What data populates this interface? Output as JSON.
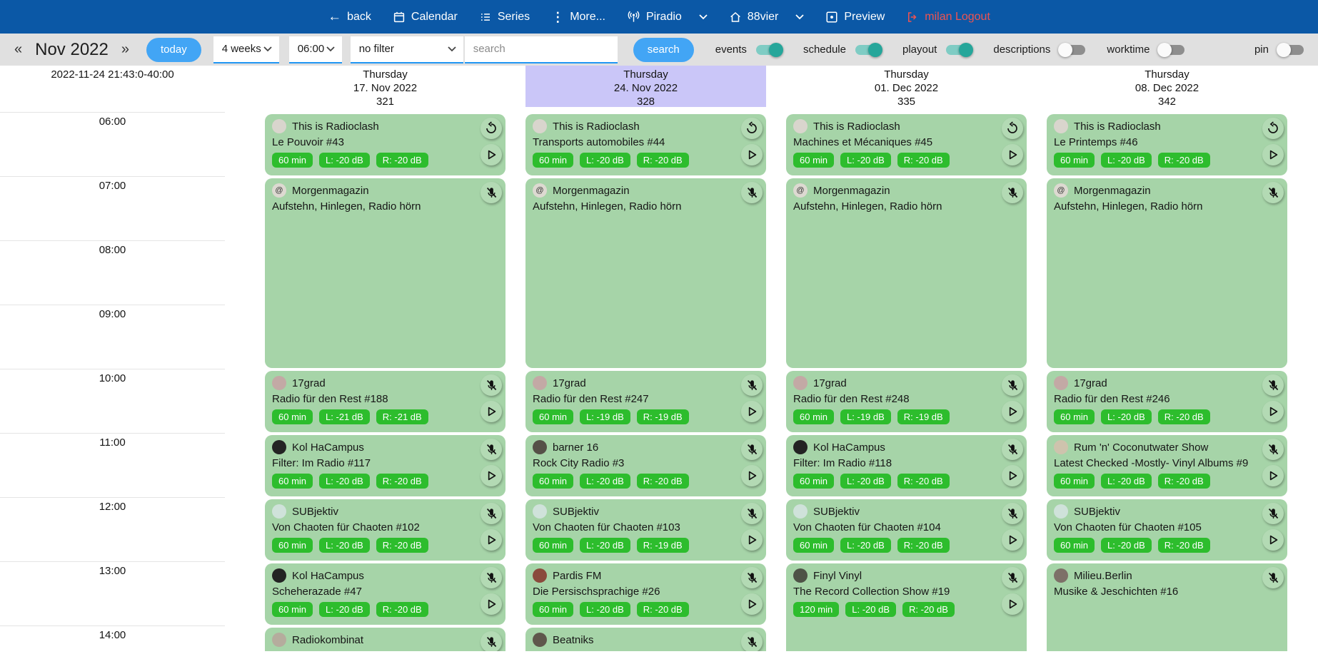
{
  "topbar": {
    "items": [
      {
        "icon": "arrow-left",
        "label": "back"
      },
      {
        "icon": "calendar",
        "label": "Calendar"
      },
      {
        "icon": "list",
        "label": "Series"
      },
      {
        "icon": "kebab",
        "label": "More..."
      },
      {
        "icon": "broadcast",
        "label": "Piradio",
        "chevron": true
      },
      {
        "icon": "home",
        "label": "88vier",
        "chevron": true
      },
      {
        "icon": "preview-eye",
        "label": "Preview"
      },
      {
        "icon": "logout",
        "label": "milan Logout",
        "danger": true
      }
    ]
  },
  "toolbar": {
    "prev": "«",
    "month": "Nov 2022",
    "next": "»",
    "today": "today",
    "range_select": "4 weeks",
    "time_select": "06:00",
    "filter_select": "no filter",
    "search_placeholder": "search",
    "search_button": "search",
    "toggles": [
      {
        "label": "events",
        "on": true
      },
      {
        "label": "schedule",
        "on": true
      },
      {
        "label": "playout",
        "on": true
      },
      {
        "label": "descriptions",
        "on": false
      },
      {
        "label": "worktime",
        "on": false
      }
    ],
    "pin": {
      "label": "pin",
      "on": false
    }
  },
  "calendar": {
    "timestamp": "2022-11-24 21:43:0-40:00",
    "hours": [
      "06:00",
      "07:00",
      "08:00",
      "09:00",
      "10:00",
      "11:00",
      "12:00",
      "13:00",
      "14:00"
    ],
    "days": [
      {
        "weekday": "Thursday",
        "date": "17. Nov 2022",
        "day_number": "321",
        "highlighted": false,
        "events": [
          {
            "show": "This is Radioclash",
            "episode": "Le Pouvoir #43",
            "start": "06:00",
            "span": 1,
            "badges": [
              "60 min",
              "L: -20 dB",
              "R: -20 dB"
            ],
            "icons": [
              "replay",
              "play"
            ],
            "avatar": "#d9d5cd"
          },
          {
            "show": "Morgenmagazin",
            "episode": "Aufstehn, Hinlegen, Radio hörn",
            "start": "07:00",
            "span": 3,
            "badges": [],
            "icons": [
              "mic-off"
            ],
            "avatar": "#ddd9d1",
            "glyph": "@"
          },
          {
            "show": "17grad",
            "episode": "Radio für den Rest #188",
            "start": "10:00",
            "span": 1,
            "badges": [
              "60 min",
              "L: -21 dB",
              "R: -21 dB"
            ],
            "icons": [
              "mic-off",
              "play"
            ],
            "avatar": "#c3a9a5"
          },
          {
            "show": "Kol HaCampus",
            "episode": "Filter: Im Radio #117",
            "start": "11:00",
            "span": 1,
            "badges": [
              "60 min",
              "L: -20 dB",
              "R: -20 dB"
            ],
            "icons": [
              "mic-off",
              "play"
            ],
            "avatar": "#232323"
          },
          {
            "show": "SUBjektiv",
            "episode": "Von Chaoten für Chaoten #102",
            "start": "12:00",
            "span": 1,
            "badges": [
              "60 min",
              "L: -20 dB",
              "R: -20 dB"
            ],
            "icons": [
              "mic-off",
              "play"
            ],
            "avatar": "#cfe2da"
          },
          {
            "show": "Kol HaCampus",
            "episode": "Scheherazade #47",
            "start": "13:00",
            "span": 1,
            "badges": [
              "60 min",
              "L: -20 dB",
              "R: -20 dB"
            ],
            "icons": [
              "mic-off",
              "play"
            ],
            "avatar": "#232323"
          },
          {
            "show": "Radiokombinat",
            "episode": "",
            "start": "14:00",
            "span": 1,
            "badges": [],
            "icons": [
              "mic-off"
            ],
            "avatar": "#b5ac9d"
          }
        ]
      },
      {
        "weekday": "Thursday",
        "date": "24. Nov 2022",
        "day_number": "328",
        "highlighted": true,
        "events": [
          {
            "show": "This is Radioclash",
            "episode": "Transports automobiles #44",
            "start": "06:00",
            "span": 1,
            "badges": [
              "60 min",
              "L: -20 dB",
              "R: -20 dB"
            ],
            "icons": [
              "replay",
              "play"
            ],
            "avatar": "#d9d5cd"
          },
          {
            "show": "Morgenmagazin",
            "episode": "Aufstehn, Hinlegen, Radio hörn",
            "start": "07:00",
            "span": 3,
            "badges": [],
            "icons": [
              "mic-off"
            ],
            "avatar": "#ddd9d1",
            "glyph": "@"
          },
          {
            "show": "17grad",
            "episode": "Radio für den Rest #247",
            "start": "10:00",
            "span": 1,
            "badges": [
              "60 min",
              "L: -19 dB",
              "R: -19 dB"
            ],
            "icons": [
              "mic-off",
              "play"
            ],
            "avatar": "#c3a9a5"
          },
          {
            "show": "barner 16",
            "episode": "Rock City Radio #3",
            "start": "11:00",
            "span": 1,
            "badges": [
              "60 min",
              "L: -20 dB",
              "R: -20 dB"
            ],
            "icons": [
              "mic-off",
              "play"
            ],
            "avatar": "#555047"
          },
          {
            "show": "SUBjektiv",
            "episode": "Von Chaoten für Chaoten #103",
            "start": "12:00",
            "span": 1,
            "badges": [
              "60 min",
              "L: -20 dB",
              "R: -19 dB"
            ],
            "icons": [
              "mic-off",
              "play"
            ],
            "avatar": "#cfe2da"
          },
          {
            "show": "Pardis FM",
            "episode": "Die Persischsprachige #26",
            "start": "13:00",
            "span": 1,
            "badges": [
              "60 min",
              "L: -20 dB",
              "R: -20 dB"
            ],
            "icons": [
              "mic-off",
              "play"
            ],
            "avatar": "#8a4a3c"
          },
          {
            "show": "Beatniks",
            "episode": "",
            "start": "14:00",
            "span": 1,
            "badges": [],
            "icons": [
              "mic-off"
            ],
            "avatar": "#5f574c"
          }
        ]
      },
      {
        "weekday": "Thursday",
        "date": "01. Dec 2022",
        "day_number": "335",
        "highlighted": false,
        "events": [
          {
            "show": "This is Radioclash",
            "episode": "Machines et Mécaniques #45",
            "start": "06:00",
            "span": 1,
            "badges": [
              "60 min",
              "L: -20 dB",
              "R: -20 dB"
            ],
            "icons": [
              "replay",
              "play"
            ],
            "avatar": "#d9d5cd"
          },
          {
            "show": "Morgenmagazin",
            "episode": "Aufstehn, Hinlegen, Radio hörn",
            "start": "07:00",
            "span": 3,
            "badges": [],
            "icons": [
              "mic-off"
            ],
            "avatar": "#ddd9d1",
            "glyph": "@"
          },
          {
            "show": "17grad",
            "episode": "Radio für den Rest #248",
            "start": "10:00",
            "span": 1,
            "badges": [
              "60 min",
              "L: -19 dB",
              "R: -19 dB"
            ],
            "icons": [
              "mic-off",
              "play"
            ],
            "avatar": "#c3a9a5"
          },
          {
            "show": "Kol HaCampus",
            "episode": "Filter: Im Radio #118",
            "start": "11:00",
            "span": 1,
            "badges": [
              "60 min",
              "L: -20 dB",
              "R: -20 dB"
            ],
            "icons": [
              "mic-off",
              "play"
            ],
            "avatar": "#232323"
          },
          {
            "show": "SUBjektiv",
            "episode": "Von Chaoten für Chaoten #104",
            "start": "12:00",
            "span": 1,
            "badges": [
              "60 min",
              "L: -20 dB",
              "R: -20 dB"
            ],
            "icons": [
              "mic-off",
              "play"
            ],
            "avatar": "#cfe2da"
          },
          {
            "show": "Finyl Vinyl",
            "episode": "The Record Collection Show #19",
            "start": "13:00",
            "span": 2,
            "badges": [
              "120 min",
              "L: -20 dB",
              "R: -20 dB"
            ],
            "icons": [
              "mic-off",
              "play"
            ],
            "avatar": "#4e5247"
          }
        ]
      },
      {
        "weekday": "Thursday",
        "date": "08. Dec 2022",
        "day_number": "342",
        "highlighted": false,
        "events": [
          {
            "show": "This is Radioclash",
            "episode": "Le Printemps #46",
            "start": "06:00",
            "span": 1,
            "badges": [
              "60 min",
              "L: -20 dB",
              "R: -20 dB"
            ],
            "icons": [
              "replay",
              "play"
            ],
            "avatar": "#d9d5cd"
          },
          {
            "show": "Morgenmagazin",
            "episode": "Aufstehn, Hinlegen, Radio hörn",
            "start": "07:00",
            "span": 3,
            "badges": [],
            "icons": [
              "mic-off"
            ],
            "avatar": "#ddd9d1",
            "glyph": "@"
          },
          {
            "show": "17grad",
            "episode": "Radio für den Rest #246",
            "start": "10:00",
            "span": 1,
            "badges": [
              "60 min",
              "L: -20 dB",
              "R: -20 dB"
            ],
            "icons": [
              "mic-off",
              "play"
            ],
            "avatar": "#c3a9a5"
          },
          {
            "show": "Rum 'n' Coconutwater Show",
            "episode": "Latest Checked -Mostly- Vinyl Albums #9",
            "start": "11:00",
            "span": 1,
            "badges": [
              "60 min",
              "L: -20 dB",
              "R: -20 dB"
            ],
            "icons": [
              "mic-off",
              "play"
            ],
            "avatar": "#cec3ad"
          },
          {
            "show": "SUBjektiv",
            "episode": "Von Chaoten für Chaoten #105",
            "start": "12:00",
            "span": 1,
            "badges": [
              "60 min",
              "L: -20 dB",
              "R: -20 dB"
            ],
            "icons": [
              "mic-off",
              "play"
            ],
            "avatar": "#cfe2da"
          },
          {
            "show": "Milieu.Berlin",
            "episode": "Musike & Jeschichten #16",
            "start": "13:00",
            "span": 2,
            "badges": [],
            "icons": [
              "mic-off"
            ],
            "avatar": "#7d7068"
          }
        ]
      }
    ]
  },
  "colors": {
    "topbar": "#0b58a6",
    "accent": "#42a5f5",
    "underline": "#2196f3",
    "toolbar_bg": "#e0e0e0",
    "card": "#a6d4a8",
    "icon_circle": "#b3dab4",
    "badge": "#2dbd2d",
    "highlight": "#cac6f8",
    "logout": "#ef5350",
    "toggle_on": "#26a69a",
    "toggle_on_track": "#7fccc4",
    "toggle_off_knob": "#fafafa",
    "toggle_off_track": "#8e8e8e"
  }
}
